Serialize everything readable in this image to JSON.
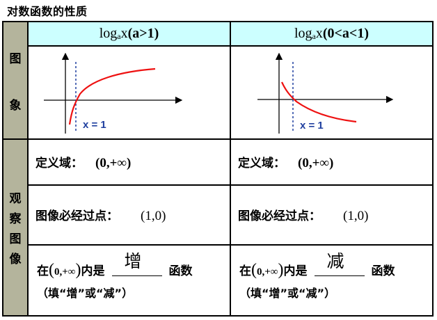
{
  "title": "对数函数的性质",
  "row_labels": {
    "graph": [
      "图",
      "象"
    ],
    "observe": [
      "观",
      "察",
      "图",
      "像"
    ]
  },
  "columns": [
    {
      "header": {
        "log": "log",
        "base": "a",
        "var": "x",
        "cond": "(a>1)"
      },
      "x_label": "x = 1",
      "domain_label": "定义域：",
      "domain_value": "(0,+∞)",
      "point_label": "图像必经过点：",
      "point_value": "(1,0)",
      "mono_prefix": "在",
      "mono_interval": "0,+∞",
      "mono_mid": "内是",
      "mono_answer": "增",
      "mono_suffix": "函数",
      "mono_hint": "（填“增”或“减”）"
    },
    {
      "header": {
        "log": "log",
        "base": "a",
        "var": "x",
        "cond": "(0<a<1)"
      },
      "x_label": "x = 1",
      "domain_label": "定义域：",
      "domain_value": "(0,+∞)",
      "point_label": "图像必经过点：",
      "point_value": "(1,0)",
      "mono_prefix": "在",
      "mono_interval": "0,+∞",
      "mono_mid": "内是",
      "mono_answer": "减",
      "mono_suffix": "函数",
      "mono_hint": "（填“增”或“减”）"
    }
  ],
  "colors": {
    "header_bg": "#ccffff",
    "row_label_bg": "#b4b49c",
    "curve": "#ee1111",
    "x1_line": "#1f3f9f",
    "x1_label": "#1f3f9f"
  }
}
